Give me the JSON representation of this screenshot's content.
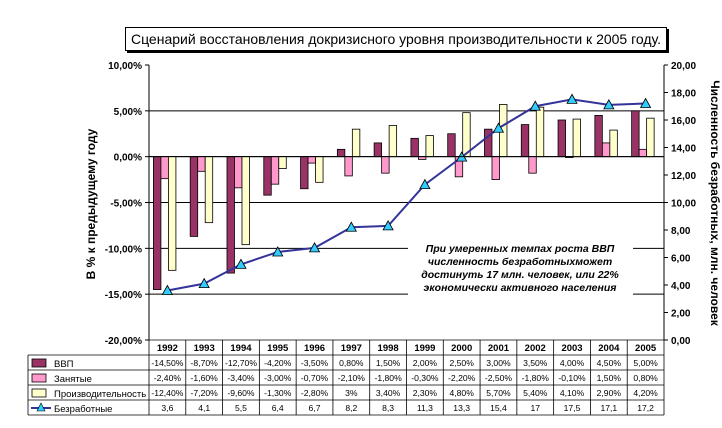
{
  "chart_data": {
    "type": "bar",
    "title": "Сценарий восстановления докризисного уровня производительности к 2005 году.",
    "ylabel": "В % к предыдущему году",
    "y2label": "Численность безработных, млн. человек",
    "ylim": [
      -20,
      10
    ],
    "y2lim": [
      0,
      20
    ],
    "y_ticks": [
      "10,00%",
      "5,00%",
      "0,00%",
      "-5,00%",
      "-10,00%",
      "-15,00%",
      "-20,00%"
    ],
    "y2_ticks": [
      "20,00",
      "18,00",
      "16,00",
      "14,00",
      "12,00",
      "10,00",
      "8,00",
      "6,00",
      "4,00",
      "2,00",
      "0,00"
    ],
    "categories": [
      "1992",
      "1993",
      "1994",
      "1995",
      "1996",
      "1997",
      "1998",
      "1999",
      "2000",
      "2001",
      "2002",
      "2003",
      "2004",
      "2005"
    ],
    "series": [
      {
        "name": "ВВП",
        "type": "bar",
        "color": "#993366",
        "values": [
          -14.5,
          -8.7,
          -12.7,
          -4.2,
          -3.5,
          0.8,
          1.5,
          2.0,
          2.5,
          3.0,
          3.5,
          4.0,
          4.5,
          5.0
        ],
        "labels": [
          "-14,50%",
          "-8,70%",
          "-12,70%",
          "-4,20%",
          "-3,50%",
          "0,80%",
          "1,50%",
          "2,00%",
          "2,50%",
          "3,00%",
          "3,50%",
          "4,00%",
          "4,50%",
          "5,00%"
        ]
      },
      {
        "name": "Занятые",
        "type": "bar",
        "color": "#ff99cc",
        "values": [
          -2.4,
          -1.6,
          -3.4,
          -3.0,
          -0.7,
          -2.1,
          -1.8,
          -0.3,
          -2.2,
          -2.5,
          -1.8,
          -0.1,
          1.5,
          0.8
        ],
        "labels": [
          "-2,40%",
          "-1,60%",
          "-3,40%",
          "-3,00%",
          "-0,70%",
          "-2,10%",
          "-1,80%",
          "-0,30%",
          "-2,20%",
          "-2,50%",
          "-1,80%",
          "-0,10%",
          "1,50%",
          "0,80%"
        ]
      },
      {
        "name": "Производительность",
        "type": "bar",
        "color": "#ffffcc",
        "values": [
          -12.4,
          -7.2,
          -9.6,
          -1.3,
          -2.8,
          3.0,
          3.4,
          2.3,
          4.8,
          5.7,
          5.4,
          4.1,
          2.9,
          4.2
        ],
        "labels": [
          "-12,40%",
          "-7,20%",
          "-9,60%",
          "-1,30%",
          "-2,80%",
          "3%",
          "3,40%",
          "2,30%",
          "4,80%",
          "5,70%",
          "5,40%",
          "4,10%",
          "2,90%",
          "4,20%"
        ]
      },
      {
        "name": "Безработные",
        "type": "line",
        "axis": "right",
        "color": "#333399",
        "marker_color": "#33ccff",
        "values": [
          3.6,
          4.1,
          5.5,
          6.4,
          6.7,
          8.2,
          8.3,
          11.3,
          13.3,
          15.4,
          17.0,
          17.5,
          17.1,
          17.2
        ],
        "labels": [
          "3,6",
          "4,1",
          "5,5",
          "6,4",
          "6,7",
          "8,2",
          "8,3",
          "11,3",
          "13,3",
          "15,4",
          "17",
          "17,5",
          "17,1",
          "17,2"
        ]
      }
    ],
    "annotation": [
      "При умеренных темпах роста ВВП",
      "численность безработныхможет",
      "достинуть 17 млн. человек, или 22%",
      "экономически активного населения"
    ]
  }
}
